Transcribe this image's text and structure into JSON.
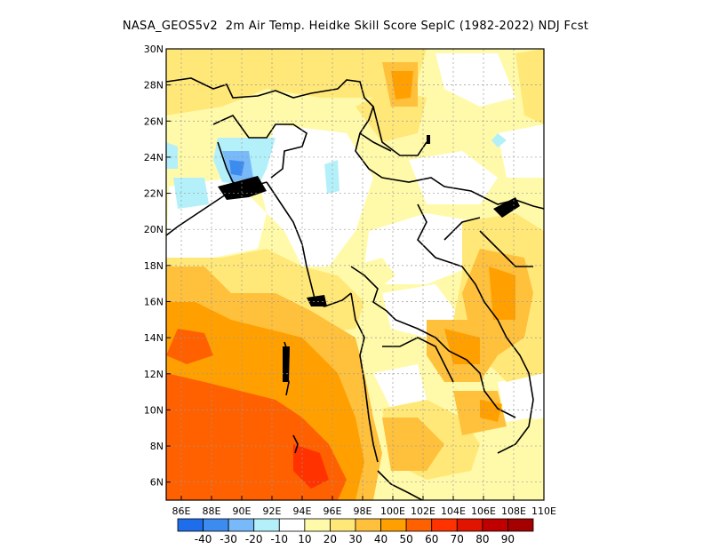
{
  "title": "NASA_GEOS5v2  2m Air Temp. Heidke Skill Score SepIC (1982-2022) NDJ Fcst",
  "map": {
    "lon_range": [
      85,
      110
    ],
    "lat_range": [
      5,
      30
    ],
    "lon_ticks": [
      "86E",
      "88E",
      "90E",
      "92E",
      "94E",
      "96E",
      "98E",
      "100E",
      "102E",
      "104E",
      "106E",
      "108E",
      "110E"
    ],
    "lat_ticks": [
      "6N",
      "8N",
      "10N",
      "12N",
      "14N",
      "16N",
      "18N",
      "20N",
      "22N",
      "24N",
      "26N",
      "28N",
      "30N"
    ],
    "grid": "dotted"
  },
  "colorbar": {
    "colors": [
      "#1e6eeb",
      "#3c8cf0",
      "#78b9fa",
      "#b4f0fa",
      "#ffffff",
      "#fffaaa",
      "#ffe878",
      "#ffc03c",
      "#ffa000",
      "#ff6000",
      "#ff3200",
      "#e11400",
      "#c00000",
      "#a50000"
    ],
    "labels": [
      "-40",
      "-30",
      "-20",
      "-10",
      "10",
      "20",
      "30",
      "40",
      "50",
      "60",
      "70",
      "80",
      "90"
    ]
  }
}
